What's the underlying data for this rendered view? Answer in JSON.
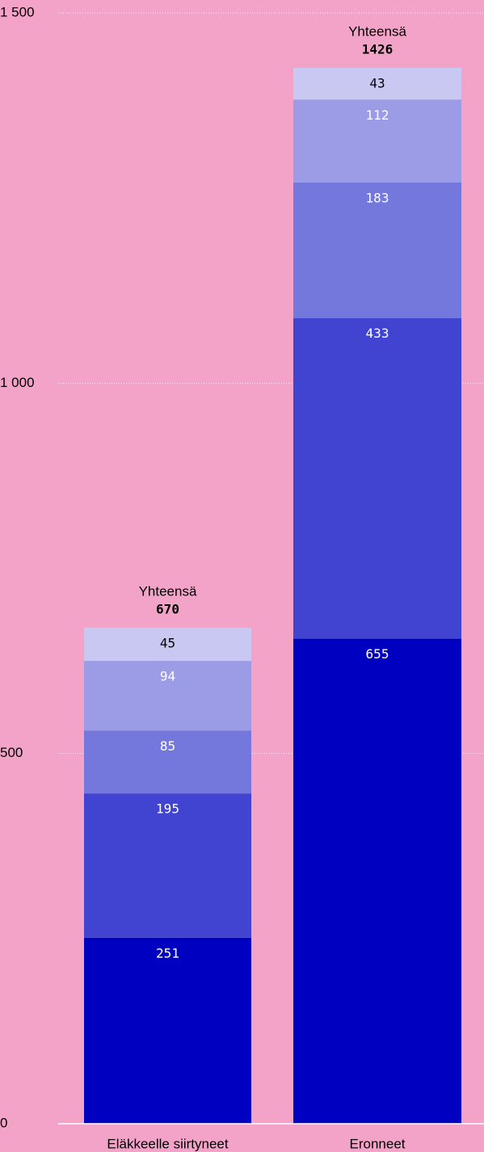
{
  "chart_data": {
    "type": "stacked-bar",
    "categories": [
      "Eläkkeelle siirtyneet",
      "Eronneet"
    ],
    "series": [
      {
        "color": "#0000c0",
        "label_color": "#ffffff",
        "values": [
          251,
          655
        ]
      },
      {
        "color": "#4044d0",
        "label_color": "#ffffff",
        "values": [
          195,
          433
        ]
      },
      {
        "color": "#7478dc",
        "label_color": "#ffffff",
        "values": [
          85,
          183
        ]
      },
      {
        "color": "#9c9ce6",
        "label_color": "#ffffff",
        "values": [
          94,
          112
        ]
      },
      {
        "color": "#c8c8f2",
        "label_color": "#000000",
        "values": [
          45,
          43
        ]
      }
    ],
    "total_label": "Yhteensä",
    "totals": [
      670,
      1426
    ],
    "ylim": [
      0,
      1500
    ],
    "yticks": [
      0,
      500,
      {
        "value": 1000,
        "label": "1 000"
      },
      {
        "value": 1500,
        "label": "1 500"
      }
    ],
    "grid": true
  }
}
